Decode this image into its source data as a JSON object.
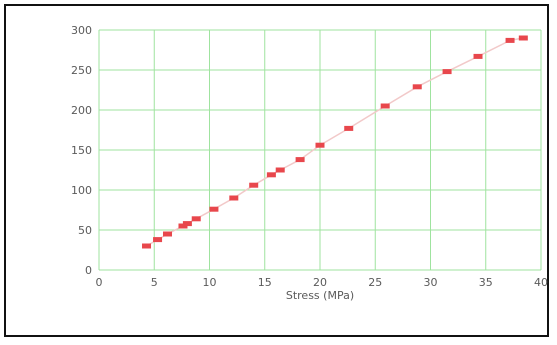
{
  "chart_data": {
    "type": "scatter",
    "title": "",
    "xlabel": "Stress (MPa)",
    "ylabel": "",
    "xlim": [
      0,
      40
    ],
    "ylim": [
      0,
      300
    ],
    "xticks": [
      0,
      5,
      10,
      15,
      20,
      25,
      30,
      35,
      40
    ],
    "yticks": [
      0,
      50,
      100,
      150,
      200,
      250,
      300
    ],
    "grid": true,
    "colors": {
      "grid": "#9fe39f",
      "marker": "#e8474c",
      "trend_line": "#f2c9c9",
      "frame": "#111111",
      "text": "#5a5a5a"
    },
    "series": [
      {
        "x": [
          4.3,
          5.3,
          6.2,
          7.6,
          8.0,
          8.8,
          10.4,
          12.2,
          14.0,
          15.6,
          16.4,
          18.2,
          20.0,
          22.6,
          25.9,
          28.8,
          31.5,
          34.3,
          37.2,
          38.4
        ],
        "y": [
          30,
          38,
          45,
          55,
          58,
          64,
          76,
          90,
          106,
          119,
          125,
          138,
          156,
          177,
          205,
          229,
          248,
          267,
          287,
          290
        ]
      }
    ]
  }
}
